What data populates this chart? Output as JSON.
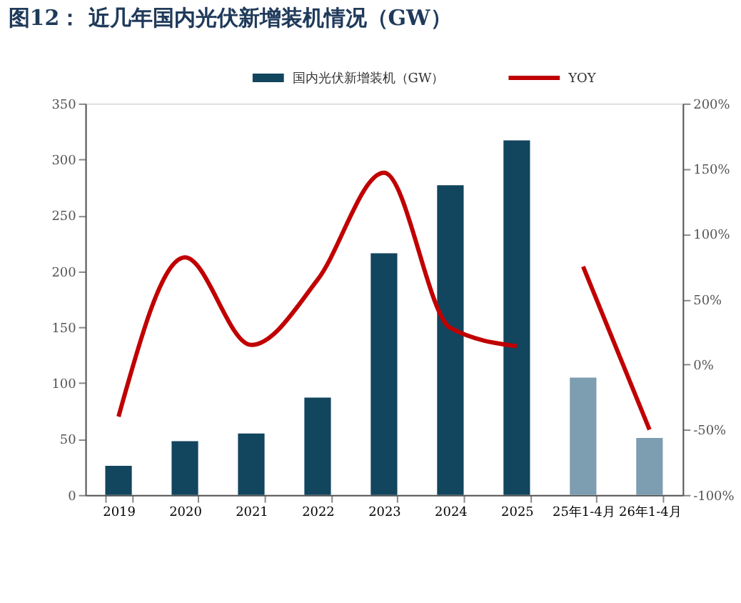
{
  "chart_data": {
    "type": "bar",
    "title": "图12：  近几年国内光伏新增装机情况（GW）",
    "categories": [
      "2019",
      "2020",
      "2021",
      "2022",
      "2023",
      "2024",
      "2025",
      "25年1-4月",
      "26年1-4月"
    ],
    "ylim": [
      0,
      350
    ],
    "yticks": [
      0,
      50,
      100,
      150,
      200,
      250,
      300,
      350
    ],
    "y2lim": [
      -100,
      200
    ],
    "y2ticks": [
      {
        "value": -100,
        "label": "-100%"
      },
      {
        "value": -50,
        "label": "-50%"
      },
      {
        "value": 0,
        "label": "0%"
      },
      {
        "value": 50,
        "label": "50%"
      },
      {
        "value": 100,
        "label": "100%"
      },
      {
        "value": 150,
        "label": "150%"
      },
      {
        "value": 200,
        "label": "200%"
      }
    ],
    "legend": "top",
    "grid": false,
    "marker": "none",
    "line_style": "solid",
    "series": [
      {
        "name": "国内光伏新增装机（GW）",
        "color": "#12455e",
        "colors": [
          "#12455e",
          "#12455e",
          "#12455e",
          "#12455e",
          "#12455e",
          "#12455e",
          "#12455e",
          "#7d9db0",
          "#7d9db0"
        ],
        "values": [
          26,
          48,
          55,
          87,
          216,
          277,
          317,
          105,
          51
        ]
      },
      {
        "name": "YOY",
        "type": "line",
        "axis": "y2",
        "color": "#c00000",
        "values": [
          -40,
          82,
          15,
          65,
          147,
          28,
          14,
          null,
          null
        ]
      },
      {
        "type": "line",
        "axis": "y2",
        "color": "#c00000",
        "values": [
          null,
          null,
          null,
          null,
          null,
          null,
          null,
          75,
          -50
        ]
      }
    ]
  }
}
